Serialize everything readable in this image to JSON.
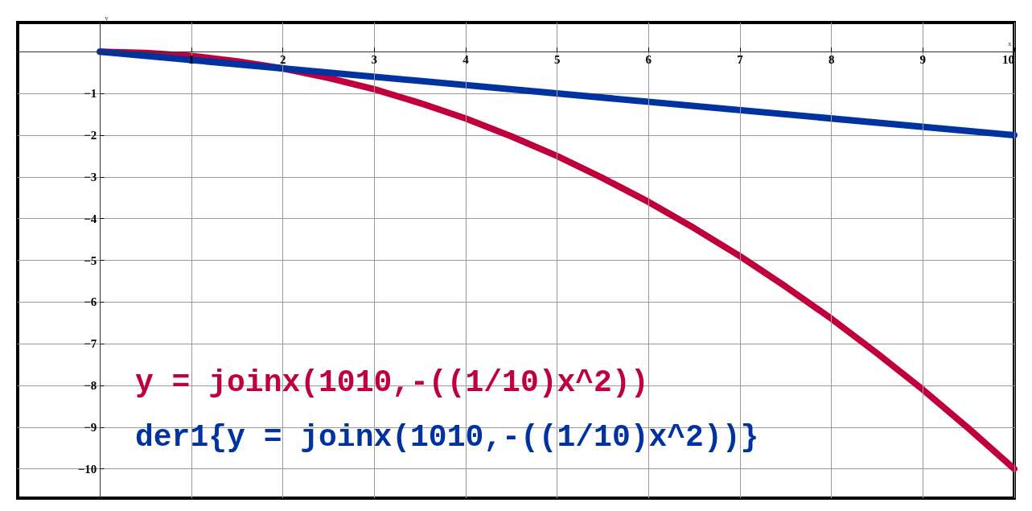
{
  "chart_data": {
    "type": "line",
    "xlabel": "x",
    "ylabel": "y",
    "xlim": [
      -0.9,
      10
    ],
    "ylim": [
      -10.7,
      0.7
    ],
    "xticks": [
      1,
      2,
      3,
      4,
      5,
      6,
      7,
      8,
      9,
      10
    ],
    "yticks": [
      -1,
      -2,
      -3,
      -4,
      -5,
      -6,
      -7,
      -8,
      -9,
      -10
    ],
    "grid": true,
    "legend": "bottom left",
    "marker": "none",
    "line_style": "solid",
    "series": [
      {
        "name": "y = joinx(1010,-((1/10)x^2))",
        "color": "#c0003c",
        "x": [
          0,
          0.5,
          1,
          1.5,
          2,
          2.5,
          3,
          3.5,
          4,
          4.5,
          5,
          5.5,
          6,
          6.5,
          7,
          7.5,
          8,
          8.5,
          9,
          9.5,
          10
        ],
        "values": [
          0,
          -0.03,
          -0.1,
          -0.23,
          -0.4,
          -0.63,
          -0.9,
          -1.23,
          -1.6,
          -2.03,
          -2.5,
          -3.03,
          -3.6,
          -4.23,
          -4.9,
          -5.63,
          -6.4,
          -7.23,
          -8.1,
          -9.03,
          -10
        ]
      },
      {
        "name": "der1{y = joinx(1010,-((1/10)x^2))}",
        "color": "#0033a0",
        "x": [
          0,
          10
        ],
        "values": [
          0,
          -2
        ]
      }
    ]
  }
}
